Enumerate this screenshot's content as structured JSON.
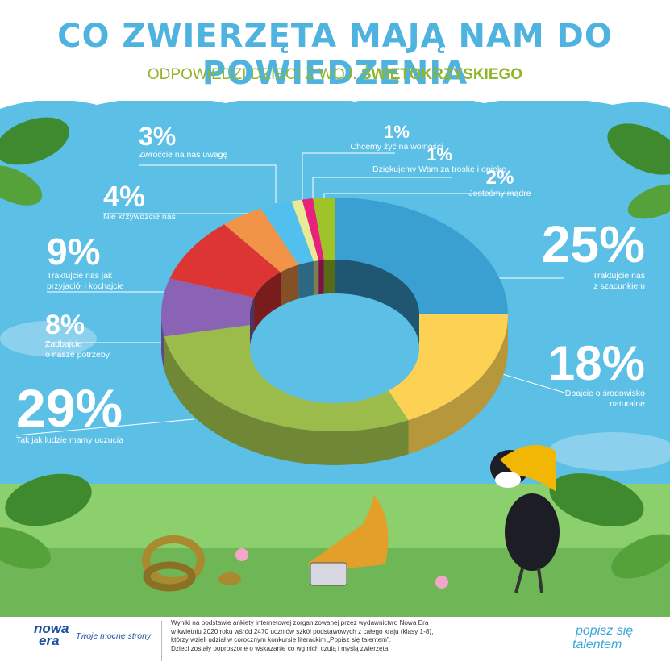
{
  "header": {
    "title": "CO ZWIERZĘTA MAJĄ NAM DO POWIEDZENIA",
    "subtitle_prefix": "ODPOWIEDZI DZIECI Z WOJ.",
    "subtitle_region": "ŚWIĘTOKRZYSKIEGO"
  },
  "chart_data": {
    "type": "pie",
    "style": "3d-donut",
    "categories": [
      "Traktujcie nas z szacunkiem",
      "Dbajcie o środowisko naturalne",
      "Tak jak ludzie mamy uczucia",
      "Zadbajcie o nasze potrzeby",
      "Traktujcie nas jak przyjaciół i kochajcie",
      "Nie krzywdźcie nas",
      "Zwróćcie na nas uwagę",
      "Chcemy żyć na wolności",
      "Dziękujemy Wam za troskę i opiekę",
      "Jesteśmy mądre"
    ],
    "values": [
      25,
      18,
      29,
      8,
      9,
      4,
      3,
      1,
      1,
      2
    ],
    "value_labels": [
      "25%",
      "18%",
      "29%",
      "8%",
      "9%",
      "4%",
      "3%",
      "1%",
      "1%",
      "2%"
    ],
    "colors": [
      "#3a9fd1",
      "#fdd254",
      "#9bbb4a",
      "#8a63b5",
      "#dd3434",
      "#f29448",
      "#52c0ee",
      "#e8ea95",
      "#e7217c",
      "#9fc42a"
    ],
    "label_lines": [
      [
        "Traktujcie nas",
        "z szacunkiem"
      ],
      [
        "Dbajcie o środowisko",
        "naturalne"
      ],
      [
        "Tak jak ludzie mamy uczucia"
      ],
      [
        "Zadbajcie",
        "o nasze potrzeby"
      ],
      [
        "Traktujcie nas jak",
        "przyjaciół i kochajcie"
      ],
      [
        "Nie krzywdźcie nas"
      ],
      [
        "Zwróćcie na nas uwagę"
      ],
      [
        "Chcemy żyć na wolności"
      ],
      [
        "Dziękujemy Wam za troskę i opiekę"
      ],
      [
        "Jesteśmy mądre"
      ]
    ],
    "legend": "none"
  },
  "footer": {
    "logo_line1": "nowa",
    "logo_line2": "era",
    "tagline": "Twoje mocne strony",
    "note_lines": [
      "Wyniki na podstawie ankiety internetowej zorganizowanej przez wydawnictwo Nowa Era",
      "w kwietniu 2020 roku wśród 2470 uczniów szkół podstawowych z całego kraju (klasy 1-8),",
      "którzy wzięli udział w corocznym konkursie literackim „Popisz się talentem”.",
      "Dzieci zostały poproszone o wskazanie co wg nich czują i myślą zwierzęta."
    ],
    "brand_line1": "popisz się",
    "brand_line2": "talentem"
  }
}
